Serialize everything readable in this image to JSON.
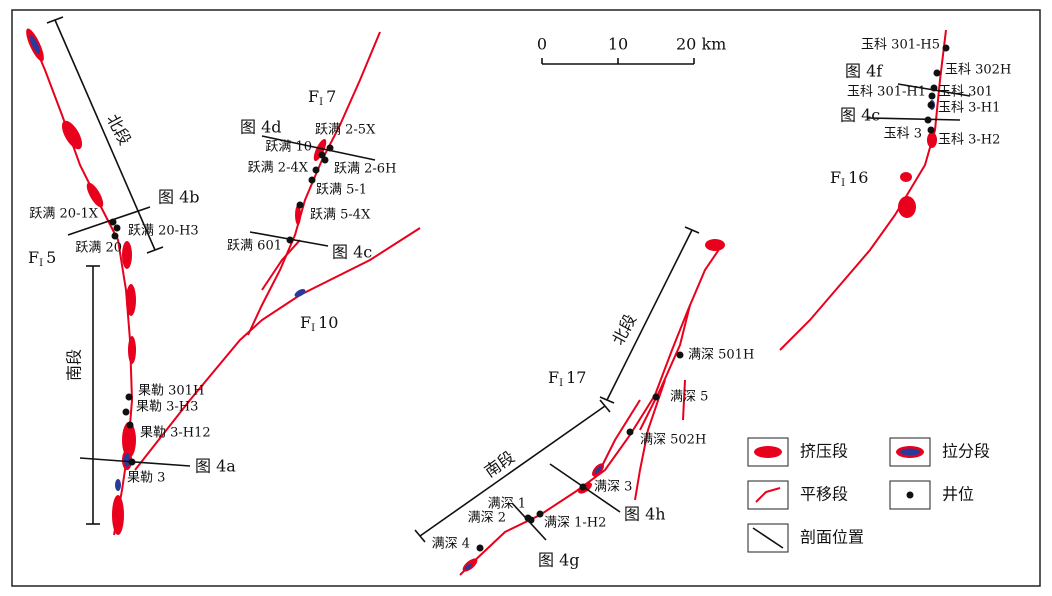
{
  "scale_bar": {
    "labels": [
      "0",
      "10",
      "20 km"
    ]
  },
  "faults": [
    {
      "main": "F",
      "sub": "I",
      "number": "5"
    },
    {
      "main": "F",
      "sub": "I",
      "number": "7"
    },
    {
      "main": "F",
      "sub": "I",
      "number": "10"
    },
    {
      "main": "F",
      "sub": "I",
      "number": "16"
    },
    {
      "main": "F",
      "sub": "I",
      "number": "17"
    }
  ],
  "sections": [
    "北段",
    "南段",
    "北段",
    "南段"
  ],
  "profiles": [
    "图 4b",
    "图 4d",
    "图 4c",
    "图 4a",
    "图 4f",
    "图 4c",
    "图 4h",
    "图 4g"
  ],
  "wells": [
    "跃满 20-1X",
    "跃满 20-H3",
    "跃满 20",
    "跃满 2-5X",
    "跃满 10",
    "跃满 2-6H",
    "跃满 2-4X",
    "跃满 5-1",
    "跃满 5-4X",
    "跃满 601",
    "果勒 301H",
    "果勒 3-H3",
    "果勒 3-H12",
    "果勒 3",
    "玉科 301-H5",
    "玉科 302H",
    "玉科 301-H1",
    "玉科 301",
    "玉科 3-H1",
    "玉科 3",
    "玉科 3-H2",
    "满深 501H",
    "满深 5",
    "满深 502H",
    "满深 3",
    "满深 1",
    "满深 2",
    "满深 1-H2",
    "满深 4"
  ],
  "legend": [
    "挤压段",
    "拉分段",
    "平移段",
    "井位",
    "剖面位置"
  ]
}
